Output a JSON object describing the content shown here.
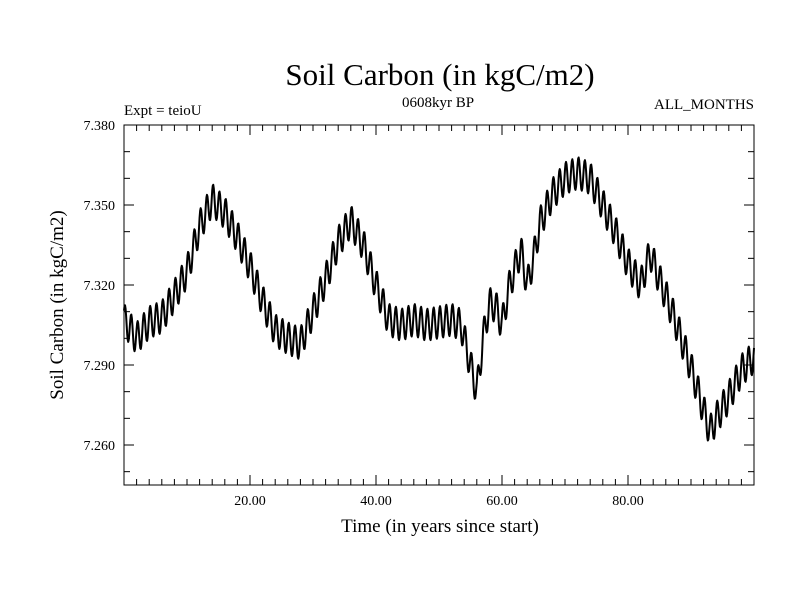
{
  "chart_data": {
    "type": "line",
    "title": "Soil Carbon (in kgC/m2)",
    "subtitle_left": "Expt = teioU",
    "subtitle_center": "0608kyr BP",
    "subtitle_right": "ALL_MONTHS",
    "xlabel": "Time (in years since start)",
    "ylabel": "Soil Carbon (in kgC/m2)",
    "xlim": [
      0,
      100
    ],
    "ylim": [
      7.245,
      7.38
    ],
    "x_ticks": [
      20,
      40,
      60,
      80
    ],
    "x_tick_labels": [
      "20.00",
      "40.00",
      "60.00",
      "80.00"
    ],
    "y_ticks": [
      7.26,
      7.29,
      7.32,
      7.35,
      7.38
    ],
    "y_tick_labels": [
      "7.260",
      "7.290",
      "7.320",
      "7.350",
      "7.380"
    ],
    "series": [
      {
        "name": "Soil Carbon",
        "seasonal_amplitude": 0.006,
        "baseline": [
          [
            0.0,
            7.307
          ],
          [
            2.0,
            7.3
          ],
          [
            4.0,
            7.306
          ],
          [
            6.0,
            7.308
          ],
          [
            8.0,
            7.316
          ],
          [
            10.0,
            7.325
          ],
          [
            12.0,
            7.342
          ],
          [
            14.0,
            7.352
          ],
          [
            16.0,
            7.347
          ],
          [
            18.0,
            7.338
          ],
          [
            20.0,
            7.327
          ],
          [
            22.0,
            7.314
          ],
          [
            24.0,
            7.303
          ],
          [
            26.0,
            7.3
          ],
          [
            28.0,
            7.298
          ],
          [
            30.0,
            7.31
          ],
          [
            32.0,
            7.322
          ],
          [
            34.0,
            7.336
          ],
          [
            36.0,
            7.344
          ],
          [
            38.0,
            7.335
          ],
          [
            40.0,
            7.32
          ],
          [
            42.0,
            7.307
          ],
          [
            44.0,
            7.305
          ],
          [
            46.0,
            7.307
          ],
          [
            48.0,
            7.305
          ],
          [
            50.0,
            7.306
          ],
          [
            52.0,
            7.307
          ],
          [
            53.5,
            7.305
          ],
          [
            55.0,
            7.29
          ],
          [
            56.0,
            7.28
          ],
          [
            57.0,
            7.3
          ],
          [
            58.0,
            7.313
          ],
          [
            59.0,
            7.312
          ],
          [
            60.0,
            7.305
          ],
          [
            61.0,
            7.318
          ],
          [
            62.0,
            7.326
          ],
          [
            63.0,
            7.333
          ],
          [
            64.0,
            7.32
          ],
          [
            65.0,
            7.33
          ],
          [
            66.0,
            7.343
          ],
          [
            68.0,
            7.354
          ],
          [
            70.0,
            7.36
          ],
          [
            72.0,
            7.362
          ],
          [
            74.0,
            7.36
          ],
          [
            76.0,
            7.35
          ],
          [
            78.0,
            7.34
          ],
          [
            80.0,
            7.328
          ],
          [
            82.0,
            7.32
          ],
          [
            83.5,
            7.332
          ],
          [
            85.0,
            7.322
          ],
          [
            87.0,
            7.31
          ],
          [
            88.0,
            7.303
          ],
          [
            90.0,
            7.289
          ],
          [
            92.0,
            7.273
          ],
          [
            93.0,
            7.265
          ],
          [
            94.0,
            7.27
          ],
          [
            96.0,
            7.278
          ],
          [
            98.0,
            7.288
          ],
          [
            100.0,
            7.293
          ]
        ]
      }
    ]
  }
}
